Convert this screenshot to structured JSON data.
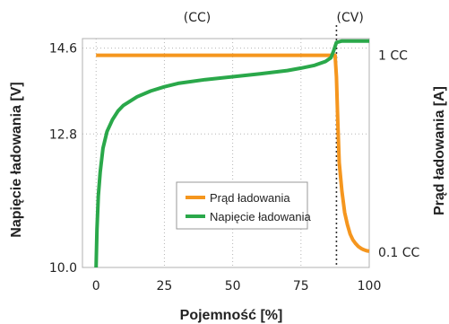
{
  "chart_data": {
    "type": "line",
    "title": "",
    "xlabel": "Pojemność [%]",
    "ylabel_left": "Napięcie ładowania [V]",
    "ylabel_right": "Prąd ładowania [A]",
    "xlim": [
      -5,
      100
    ],
    "ylim_left": [
      10.0,
      14.8
    ],
    "x_ticks": [
      0,
      25,
      50,
      75,
      100
    ],
    "x_tick_labels": [
      "0",
      "25",
      "50",
      "75",
      "100"
    ],
    "y_left_ticks": [
      10.0,
      12.8,
      14.6
    ],
    "y_left_tick_labels": [
      "10.0",
      "12.8",
      "14.6"
    ],
    "y_right_ticks": [
      {
        "label": "1 CC",
        "y": 14.45
      },
      {
        "label": "0.1 CC",
        "y": 10.32
      }
    ],
    "phase_labels": [
      {
        "label": "(CC)",
        "x": 37
      },
      {
        "label": "(CV)",
        "x": 93
      }
    ],
    "cv_boundary_x": 88,
    "grid": true,
    "legend_position": "center",
    "series": [
      {
        "name": "Prąd ładowania",
        "color": "#f5961e",
        "axis": "right",
        "x": [
          0,
          10,
          20,
          30,
          40,
          50,
          60,
          70,
          80,
          86,
          87.5,
          88,
          88.5,
          89,
          90,
          91,
          92,
          93,
          94,
          95,
          96,
          97,
          98,
          99,
          100
        ],
        "y": [
          14.45,
          14.45,
          14.45,
          14.45,
          14.45,
          14.45,
          14.45,
          14.45,
          14.45,
          14.45,
          14.45,
          14.0,
          13.0,
          12.2,
          11.6,
          11.15,
          10.9,
          10.7,
          10.58,
          10.5,
          10.44,
          10.4,
          10.37,
          10.35,
          10.34
        ]
      },
      {
        "name": "Napięcie ładowania",
        "color": "#2aa84a",
        "axis": "left",
        "x": [
          0,
          0.3,
          0.8,
          1.5,
          2.5,
          4,
          6,
          8,
          10,
          15,
          20,
          25,
          30,
          40,
          50,
          60,
          70,
          75,
          80,
          84,
          86,
          87,
          88,
          90,
          95,
          100
        ],
        "y": [
          10.0,
          10.8,
          11.5,
          12.0,
          12.5,
          12.85,
          13.1,
          13.28,
          13.4,
          13.58,
          13.7,
          13.79,
          13.86,
          13.94,
          14.0,
          14.06,
          14.13,
          14.18,
          14.24,
          14.32,
          14.4,
          14.55,
          14.72,
          14.75,
          14.75,
          14.75
        ]
      }
    ]
  }
}
